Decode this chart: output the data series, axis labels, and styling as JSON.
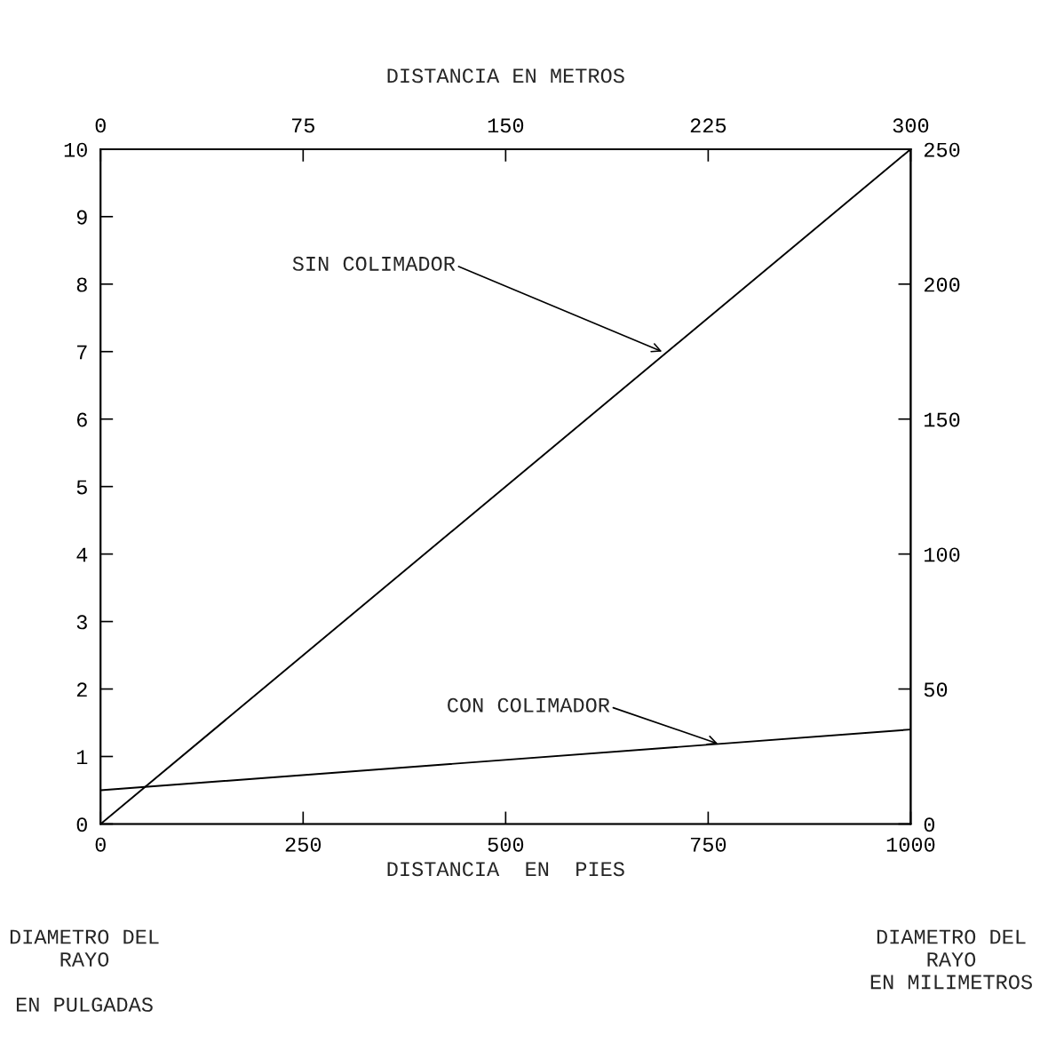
{
  "chart_data": {
    "type": "line",
    "xlabel": "DISTANCIA  EN  PIES",
    "x2label": "DISTANCIA EN METROS",
    "ylabel": "DIAMETRO DEL\nRAYO\n\nEN PULGADAS",
    "y2label": "DIAMETRO DEL\nRAYO\nEN MILIMETROS",
    "x": [
      0,
      1000
    ],
    "series": [
      {
        "color": "#000000",
        "values": [
          0,
          10
        ]
      },
      {
        "color": "#000000",
        "values": [
          0.5,
          1.4
        ]
      }
    ],
    "xlim": [
      0,
      1000
    ],
    "xticks": [
      0,
      250,
      500,
      750,
      1000
    ],
    "x2lim": [
      0,
      300
    ],
    "x2ticks": [
      0,
      75,
      150,
      225,
      300
    ],
    "ylim": [
      0,
      10
    ],
    "yticks": [
      0,
      1,
      2,
      3,
      4,
      5,
      6,
      7,
      8,
      9,
      10
    ],
    "y2lim": [
      0,
      250
    ],
    "y2ticks": [
      0,
      50,
      100,
      150,
      200,
      250
    ],
    "annotations": [
      {
        "text": "SIN COLIMADOR",
        "x": 693,
        "y": 7.0
      },
      {
        "text": "CON COLIMADOR",
        "x": 762,
        "y": 1.19
      }
    ],
    "grid": false,
    "legend": false,
    "line_style": "solid"
  }
}
